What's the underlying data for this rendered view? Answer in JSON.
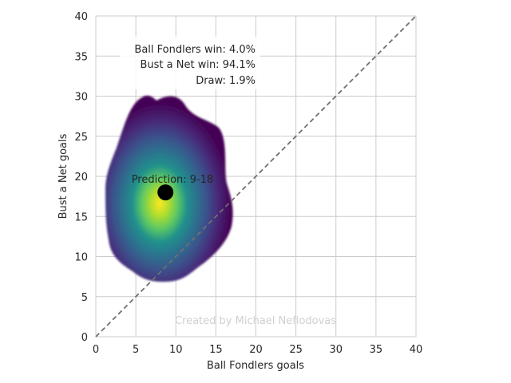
{
  "chart_data": {
    "type": "heatmap",
    "subtype": "kde-density-with-point",
    "xlabel": "Ball Fondlers goals",
    "ylabel": "Bust a Net goals",
    "xlim": [
      0,
      40
    ],
    "ylim": [
      0,
      40
    ],
    "xticks": [
      0,
      5,
      10,
      15,
      20,
      25,
      30,
      35,
      40
    ],
    "yticks": [
      0,
      5,
      10,
      15,
      20,
      25,
      30,
      35,
      40
    ],
    "grid": true,
    "colormap": "viridis",
    "diagonal_line": {
      "from": [
        0,
        0
      ],
      "to": [
        40,
        40
      ],
      "style": "dashed",
      "color": "#707070"
    },
    "density": {
      "center": [
        8,
        16.5
      ],
      "x_extent": [
        1.4,
        17.2
      ],
      "y_extent": [
        6.8,
        30.1
      ]
    },
    "point": {
      "x": 8.7,
      "y": 18,
      "color": "#000000"
    },
    "annotations": {
      "prediction": "Prediction: 9-18",
      "win_home": "Ball Fondlers win: 4.0%",
      "win_away": "Bust a Net win: 94.1%",
      "draw": "Draw: 1.9%"
    },
    "watermark": "Created by Michael Nefiodovas"
  }
}
